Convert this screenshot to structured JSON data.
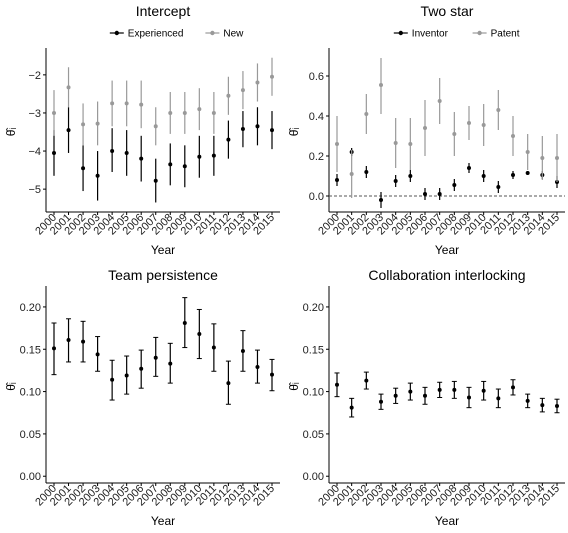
{
  "colors": {
    "series_a": "#000000",
    "series_b": "#999999",
    "zero_line": "#555555"
  },
  "chart_data": [
    {
      "type": "scatter",
      "title": "Intercept",
      "xlabel": "Year",
      "ylabel": "θ̂ᵢ",
      "x": [
        "2000",
        "2001",
        "2002",
        "2003",
        "2004",
        "2005",
        "2006",
        "2007",
        "2008",
        "2009",
        "2010",
        "2011",
        "2012",
        "2013",
        "2014",
        "2015"
      ],
      "ylim": [
        -5.6,
        -1.4
      ],
      "yticks": [
        -5,
        -4,
        -3,
        -2
      ],
      "legend": "top-center",
      "series": [
        {
          "name": "Experienced",
          "color": "#000000",
          "values": [
            -4.05,
            -3.45,
            -4.45,
            -4.65,
            -4.0,
            -4.05,
            -4.2,
            -4.78,
            -4.35,
            -4.4,
            -4.15,
            -4.12,
            -3.7,
            -3.42,
            -3.35,
            -3.45
          ],
          "lower": [
            -4.65,
            -4.05,
            -5.05,
            -5.3,
            -4.55,
            -4.65,
            -4.8,
            -5.35,
            -4.9,
            -4.95,
            -4.7,
            -4.65,
            -4.2,
            -3.9,
            -3.85,
            -3.95
          ],
          "upper": [
            -3.45,
            -2.85,
            -3.85,
            -4.0,
            -3.4,
            -3.45,
            -3.6,
            -4.2,
            -3.8,
            -3.85,
            -3.6,
            -3.6,
            -3.2,
            -2.95,
            -2.85,
            -2.95
          ]
        },
        {
          "name": "New",
          "color": "#999999",
          "values": [
            -3.0,
            -2.33,
            -3.3,
            -3.28,
            -2.75,
            -2.75,
            -2.78,
            -3.35,
            -3.0,
            -3.0,
            -2.9,
            -3.0,
            -2.55,
            -2.4,
            -2.2,
            -2.05
          ],
          "lower": [
            -3.6,
            -2.85,
            -3.85,
            -3.85,
            -3.35,
            -3.35,
            -3.4,
            -3.85,
            -3.55,
            -3.55,
            -3.45,
            -3.55,
            -3.05,
            -2.9,
            -2.7,
            -2.55
          ],
          "upper": [
            -2.4,
            -1.8,
            -2.75,
            -2.7,
            -2.15,
            -2.15,
            -2.15,
            -2.85,
            -2.45,
            -2.45,
            -2.35,
            -2.45,
            -2.05,
            -1.9,
            -1.7,
            -1.55
          ]
        }
      ]
    },
    {
      "type": "scatter",
      "title": "Two star",
      "xlabel": "Year",
      "ylabel": "θ̂ᵢ",
      "x": [
        "2000",
        "2001",
        "2002",
        "2003",
        "2004",
        "2005",
        "2006",
        "2007",
        "2008",
        "2009",
        "2010",
        "2011",
        "2012",
        "2013",
        "2014",
        "2015"
      ],
      "ylim": [
        -0.08,
        0.72
      ],
      "yticks": [
        0.0,
        0.2,
        0.4,
        0.6
      ],
      "yticklabels": [
        "0.0",
        "0.2",
        "0.4",
        "0.6"
      ],
      "zero_line": true,
      "legend": "top-center",
      "series": [
        {
          "name": "Inventor",
          "color": "#000000",
          "values": [
            0.08,
            0.22,
            0.12,
            -0.02,
            0.075,
            0.1,
            0.01,
            0.01,
            0.055,
            0.14,
            0.1,
            0.045,
            0.105,
            0.115,
            0.105,
            0.07
          ],
          "lower": [
            0.05,
            0.2,
            0.09,
            -0.06,
            0.045,
            0.07,
            -0.02,
            -0.02,
            0.025,
            0.115,
            0.07,
            0.015,
            0.085,
            0.105,
            0.085,
            0.04
          ],
          "upper": [
            0.11,
            0.24,
            0.15,
            0.02,
            0.105,
            0.13,
            0.04,
            0.04,
            0.085,
            0.165,
            0.13,
            0.075,
            0.125,
            0.125,
            0.125,
            0.1
          ]
        },
        {
          "name": "Patent",
          "color": "#999999",
          "values": [
            0.26,
            0.11,
            0.41,
            0.555,
            0.265,
            0.26,
            0.34,
            0.475,
            0.31,
            0.365,
            0.355,
            0.43,
            0.3,
            0.22,
            0.19,
            0.19
          ],
          "lower": [
            0.12,
            -0.01,
            0.31,
            0.41,
            0.14,
            0.13,
            0.2,
            0.36,
            0.2,
            0.28,
            0.25,
            0.33,
            0.2,
            0.13,
            0.08,
            0.07
          ],
          "upper": [
            0.4,
            0.23,
            0.51,
            0.69,
            0.39,
            0.39,
            0.48,
            0.59,
            0.42,
            0.45,
            0.46,
            0.53,
            0.4,
            0.31,
            0.3,
            0.31
          ]
        }
      ]
    },
    {
      "type": "scatter",
      "title": "Team persistence",
      "xlabel": "Year",
      "ylabel": "θ̂ᵢ",
      "x": [
        "2000",
        "2001",
        "2002",
        "2003",
        "2004",
        "2005",
        "2006",
        "2007",
        "2008",
        "2009",
        "2010",
        "2011",
        "2012",
        "2013",
        "2014",
        "2015"
      ],
      "ylim": [
        -0.008,
        0.22
      ],
      "yticks": [
        0.0,
        0.05,
        0.1,
        0.15,
        0.2
      ],
      "yticklabels": [
        "0.00",
        "0.05",
        "0.10",
        "0.15",
        "0.20"
      ],
      "series": [
        {
          "color": "#000000",
          "values": [
            0.151,
            0.161,
            0.159,
            0.144,
            0.114,
            0.119,
            0.127,
            0.14,
            0.133,
            0.181,
            0.168,
            0.152,
            0.11,
            0.148,
            0.129,
            0.12
          ],
          "lower": [
            0.12,
            0.135,
            0.135,
            0.124,
            0.09,
            0.097,
            0.104,
            0.118,
            0.11,
            0.152,
            0.139,
            0.124,
            0.085,
            0.124,
            0.11,
            0.101
          ],
          "upper": [
            0.181,
            0.186,
            0.183,
            0.165,
            0.137,
            0.142,
            0.149,
            0.164,
            0.157,
            0.211,
            0.197,
            0.18,
            0.136,
            0.172,
            0.149,
            0.138
          ]
        }
      ]
    },
    {
      "type": "scatter",
      "title": "Collaboration interlocking",
      "xlabel": "Year",
      "ylabel": "θ̂ᵢ",
      "x": [
        "2000",
        "2001",
        "2002",
        "2003",
        "2004",
        "2005",
        "2006",
        "2007",
        "2008",
        "2009",
        "2010",
        "2011",
        "2012",
        "2013",
        "2014",
        "2015"
      ],
      "ylim": [
        -0.008,
        0.22
      ],
      "yticks": [
        0.0,
        0.05,
        0.1,
        0.15,
        0.2
      ],
      "yticklabels": [
        "0.00",
        "0.05",
        "0.10",
        "0.15",
        "0.20"
      ],
      "series": [
        {
          "color": "#000000",
          "values": [
            0.108,
            0.081,
            0.113,
            0.088,
            0.095,
            0.1,
            0.095,
            0.102,
            0.102,
            0.093,
            0.101,
            0.092,
            0.105,
            0.089,
            0.084,
            0.083
          ],
          "lower": [
            0.094,
            0.07,
            0.103,
            0.079,
            0.086,
            0.09,
            0.085,
            0.093,
            0.092,
            0.081,
            0.09,
            0.081,
            0.096,
            0.081,
            0.076,
            0.075
          ],
          "upper": [
            0.122,
            0.092,
            0.123,
            0.097,
            0.104,
            0.11,
            0.105,
            0.111,
            0.112,
            0.105,
            0.112,
            0.103,
            0.114,
            0.097,
            0.092,
            0.091
          ]
        }
      ]
    }
  ]
}
